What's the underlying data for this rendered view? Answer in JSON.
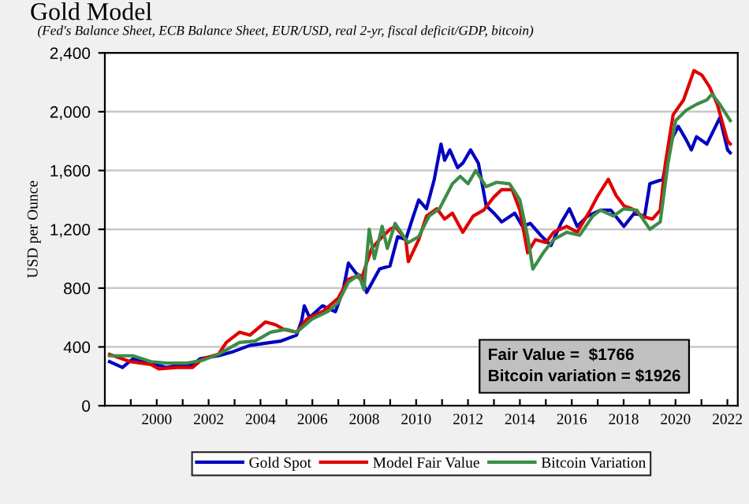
{
  "chart_data": {
    "type": "line",
    "title": "Gold Model",
    "subtitle": "(Fed's Balance Sheet, ECB Balance Sheet, EUR/USD, real 2-yr, fiscal deficit/GDP, bitcoin)",
    "ylabel": "USD per Ounce",
    "annotations": [
      "Fair Value =  $1766",
      "Bitcoin variation = $1926"
    ],
    "xlim": [
      1998,
      2022.4
    ],
    "ylim": [
      0,
      2400
    ],
    "xticks": [
      {
        "value": 1999,
        "label": null
      },
      2000,
      {
        "value": 2001,
        "label": null
      },
      2002,
      {
        "value": 2003,
        "label": null
      },
      2004,
      {
        "value": 2005,
        "label": null
      },
      2006,
      {
        "value": 2007,
        "label": null
      },
      2008,
      {
        "value": 2009,
        "label": null
      },
      2010,
      {
        "value": 2011,
        "label": null
      },
      2012,
      {
        "value": 2013,
        "label": null
      },
      2014,
      {
        "value": 2015,
        "label": null
      },
      2016,
      {
        "value": 2017,
        "label": null
      },
      2018,
      {
        "value": 2019,
        "label": null
      },
      2020,
      {
        "value": 2021,
        "label": null
      },
      2022
    ],
    "yticks": [
      0,
      400,
      800,
      {
        "value": 1200,
        "label": "1,200"
      },
      {
        "value": 1600,
        "label": "1,600"
      },
      {
        "value": 2000,
        "label": "2,000"
      },
      {
        "value": 2400,
        "label": "2,400"
      }
    ],
    "grid": "y",
    "legend": "bottom",
    "line_style": "solid",
    "series": [
      {
        "name": "Gold Spot",
        "color": "#0000c0",
        "x": [
          1998.18,
          1998.68,
          1999.08,
          1999.78,
          2000.38,
          2000.98,
          2001.38,
          2001.68,
          2002.38,
          2002.98,
          2003.59,
          2004.39,
          2004.79,
          2005.39,
          2005.59,
          2005.69,
          2005.89,
          2006.39,
          2006.89,
          2007.19,
          2007.39,
          2007.69,
          2007.89,
          2008.09,
          2008.59,
          2008.99,
          2009.29,
          2009.6,
          2009.8,
          2010.1,
          2010.4,
          2010.7,
          2010.96,
          2011.1,
          2011.3,
          2011.6,
          2011.8,
          2012.1,
          2012.4,
          2012.7,
          2013.0,
          2013.3,
          2013.8,
          2014.1,
          2014.4,
          2014.8,
          2015.2,
          2015.61,
          2015.91,
          2016.21,
          2016.61,
          2017.11,
          2017.51,
          2018.01,
          2018.41,
          2018.81,
          2019.01,
          2019.51,
          2019.81,
          2020.11,
          2020.41,
          2020.61,
          2020.81,
          2021.21,
          2021.71,
          2022.01,
          2022.11
        ],
        "values": [
          300,
          260,
          320,
          290,
          260,
          280,
          280,
          320,
          340,
          370,
          410,
          430,
          440,
          480,
          580,
          680,
          600,
          680,
          640,
          790,
          970,
          900,
          880,
          770,
          930,
          950,
          1150,
          1130,
          1240,
          1400,
          1340,
          1540,
          1780,
          1670,
          1740,
          1620,
          1650,
          1740,
          1650,
          1360,
          1310,
          1250,
          1310,
          1220,
          1240,
          1160,
          1090,
          1250,
          1340,
          1220,
          1290,
          1330,
          1330,
          1220,
          1310,
          1290,
          1510,
          1540,
          1800,
          1900,
          1810,
          1740,
          1830,
          1780,
          1960,
          1740,
          1720
        ]
      },
      {
        "name": "Model Fair Value",
        "color": "#e00000",
        "x": [
          1998.18,
          1998.98,
          1999.78,
          2000.08,
          2000.78,
          2001.38,
          2001.78,
          2002.38,
          2002.68,
          2003.19,
          2003.59,
          2004.19,
          2004.59,
          2004.89,
          2005.39,
          2005.79,
          2006.39,
          2006.99,
          2007.39,
          2007.69,
          2007.89,
          2008.09,
          2008.29,
          2008.59,
          2008.99,
          2009.19,
          2009.6,
          2009.7,
          2010.1,
          2010.4,
          2010.8,
          2011.1,
          2011.4,
          2011.8,
          2012.2,
          2012.6,
          2013.0,
          2013.3,
          2013.7,
          2014.0,
          2014.3,
          2014.6,
          2015.0,
          2015.3,
          2015.81,
          2016.21,
          2016.71,
          2017.01,
          2017.41,
          2017.71,
          2018.01,
          2018.31,
          2018.71,
          2019.11,
          2019.41,
          2019.61,
          2019.91,
          2020.31,
          2020.71,
          2021.01,
          2021.31,
          2021.61,
          2022.01,
          2022.11
        ],
        "values": [
          350,
          300,
          280,
          250,
          260,
          260,
          320,
          350,
          430,
          500,
          480,
          570,
          550,
          520,
          500,
          590,
          640,
          730,
          860,
          880,
          860,
          970,
          1070,
          1130,
          1200,
          1220,
          1130,
          980,
          1130,
          1290,
          1340,
          1270,
          1310,
          1180,
          1290,
          1330,
          1420,
          1470,
          1470,
          1330,
          1040,
          1130,
          1110,
          1180,
          1220,
          1180,
          1330,
          1430,
          1540,
          1430,
          1360,
          1340,
          1290,
          1270,
          1330,
          1650,
          1980,
          2080,
          2280,
          2250,
          2170,
          2050,
          1800,
          1780
        ]
      },
      {
        "name": "Bitcoin Variation",
        "color": "#3c8c46",
        "x": [
          1998.18,
          1999.08,
          1999.78,
          2000.38,
          2001.18,
          2001.78,
          2002.38,
          2003.19,
          2003.79,
          2004.39,
          2004.99,
          2005.39,
          2005.99,
          2006.59,
          2006.99,
          2007.39,
          2007.79,
          2007.99,
          2008.19,
          2008.39,
          2008.69,
          2008.89,
          2009.19,
          2009.6,
          2009.7,
          2010.1,
          2010.5,
          2010.9,
          2011.4,
          2011.7,
          2012.0,
          2012.3,
          2012.7,
          2013.1,
          2013.6,
          2014.0,
          2014.3,
          2014.5,
          2014.9,
          2015.3,
          2015.81,
          2016.31,
          2016.81,
          2017.11,
          2017.61,
          2018.01,
          2018.51,
          2019.01,
          2019.41,
          2019.71,
          2020.01,
          2020.41,
          2020.81,
          2021.21,
          2021.41,
          2021.71,
          2022.11
        ],
        "values": [
          340,
          340,
          300,
          290,
          290,
          310,
          350,
          430,
          440,
          500,
          520,
          500,
          590,
          640,
          700,
          840,
          890,
          790,
          1200,
          1000,
          1220,
          1070,
          1240,
          1130,
          1110,
          1150,
          1290,
          1340,
          1510,
          1560,
          1510,
          1600,
          1490,
          1520,
          1510,
          1400,
          1150,
          930,
          1040,
          1130,
          1180,
          1160,
          1290,
          1330,
          1290,
          1340,
          1330,
          1200,
          1250,
          1650,
          1940,
          2010,
          2050,
          2080,
          2120,
          2050,
          1940
        ]
      }
    ]
  }
}
